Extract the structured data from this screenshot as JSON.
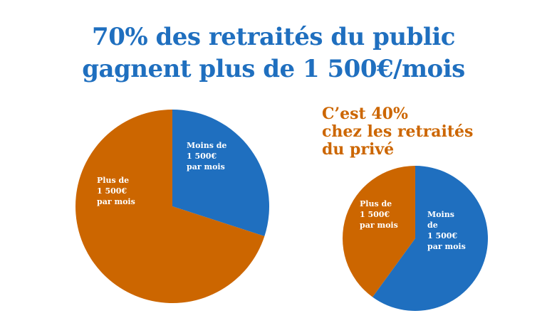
{
  "title_line1": "70% des retraités du public",
  "title_line2": "gagnent plus de 1 500€/mois",
  "subtitle_lines": [
    "C’est 40%",
    "chez les retraités",
    "du privé"
  ],
  "colors": {
    "blue": "#1f6fbf",
    "orange": "#cc6600",
    "text_blue": "#1f6fbf",
    "text_orange": "#cc6600"
  },
  "chart_data": [
    {
      "type": "pie",
      "title": "",
      "slices": [
        {
          "label_lines": [
            "Moins de",
            "1 500€",
            "par mois"
          ],
          "value": 30,
          "color": "#1f6fbf"
        },
        {
          "label_lines": [
            "Plus de",
            "1 500€",
            "par mois"
          ],
          "value": 70,
          "color": "#cc6600"
        }
      ]
    },
    {
      "type": "pie",
      "title": "",
      "slices": [
        {
          "label_lines": [
            "Moins",
            "de",
            "1 500€",
            "par mois"
          ],
          "value": 60,
          "color": "#1f6fbf"
        },
        {
          "label_lines": [
            "Plus de",
            "1 500€",
            "par mois"
          ],
          "value": 40,
          "color": "#cc6600"
        }
      ]
    }
  ]
}
